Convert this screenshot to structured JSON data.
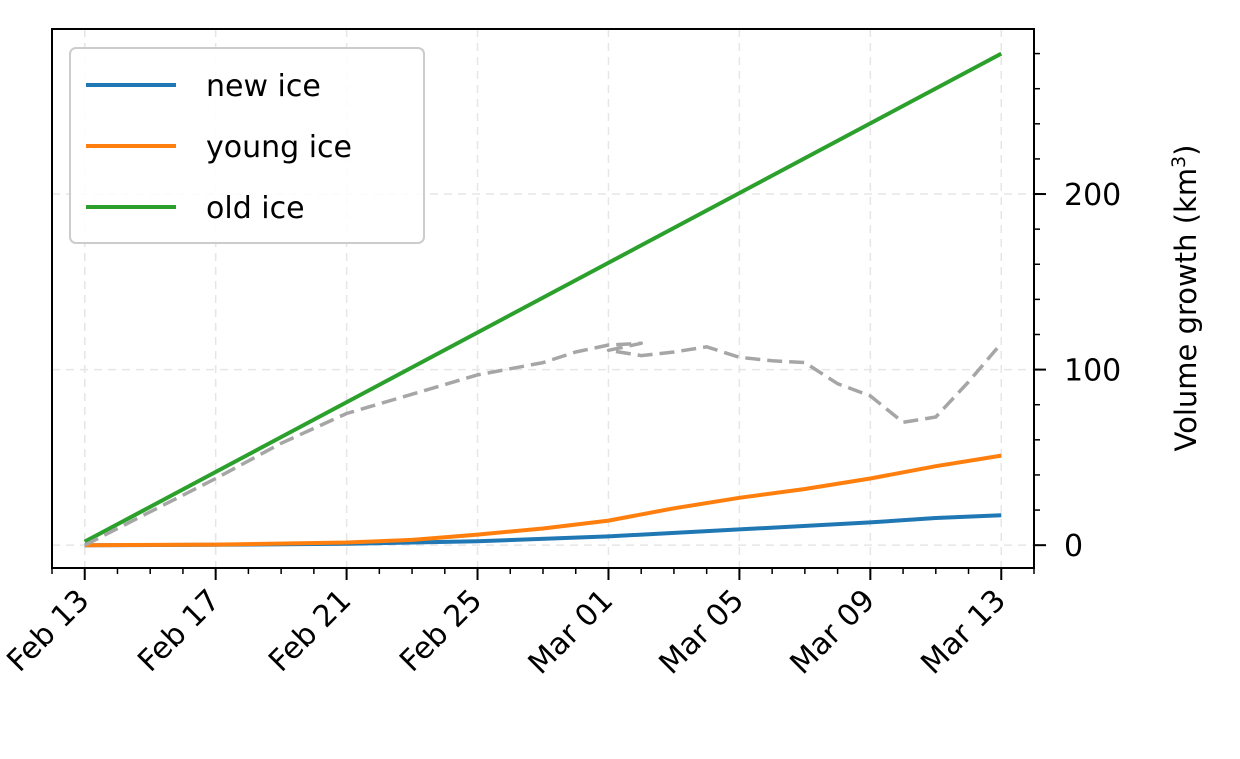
{
  "chart_data": {
    "type": "line",
    "title": "",
    "xlabel": "",
    "ylabel": "Volume growth (km",
    "ylabel_superscript": "3",
    "ylabel_suffix": ")",
    "y_axis_side": "right",
    "grid": true,
    "legend_position": "top-left",
    "xlim": [
      "2021-02-12",
      "2021-03-14"
    ],
    "ylim": [
      -13,
      294
    ],
    "x_ticks": [
      {
        "date": "2021-02-13",
        "label": "Feb 13"
      },
      {
        "date": "2021-02-17",
        "label": "Feb 17"
      },
      {
        "date": "2021-02-21",
        "label": "Feb 21"
      },
      {
        "date": "2021-02-25",
        "label": "Feb 25"
      },
      {
        "date": "2021-03-01",
        "label": "Mar 01"
      },
      {
        "date": "2021-03-05",
        "label": "Mar 05"
      },
      {
        "date": "2021-03-09",
        "label": "Mar 09"
      },
      {
        "date": "2021-03-13",
        "label": "Mar 13"
      }
    ],
    "y_ticks": [
      {
        "value": 0,
        "label": "0"
      },
      {
        "value": 100,
        "label": "100"
      },
      {
        "value": 200,
        "label": "200"
      }
    ],
    "series": [
      {
        "name": "new ice",
        "color": "#1f77b4",
        "style": "solid",
        "points": [
          [
            "2021-02-13",
            0
          ],
          [
            "2021-02-17",
            0.2
          ],
          [
            "2021-02-21",
            0.8
          ],
          [
            "2021-02-25",
            2.2
          ],
          [
            "2021-03-01",
            5
          ],
          [
            "2021-03-05",
            9
          ],
          [
            "2021-03-09",
            13
          ],
          [
            "2021-03-11",
            15.5
          ],
          [
            "2021-03-13",
            17
          ]
        ]
      },
      {
        "name": "young ice",
        "color": "#ff7f0e",
        "style": "solid",
        "points": [
          [
            "2021-02-13",
            0
          ],
          [
            "2021-02-17",
            0.3
          ],
          [
            "2021-02-21",
            1.5
          ],
          [
            "2021-02-23",
            3
          ],
          [
            "2021-02-25",
            6
          ],
          [
            "2021-02-27",
            9.5
          ],
          [
            "2021-03-01",
            14
          ],
          [
            "2021-03-03",
            21
          ],
          [
            "2021-03-05",
            27
          ],
          [
            "2021-03-07",
            32
          ],
          [
            "2021-03-09",
            38
          ],
          [
            "2021-03-11",
            45
          ],
          [
            "2021-03-13",
            51
          ]
        ]
      },
      {
        "name": "old ice",
        "color": "#2ca02c",
        "style": "solid",
        "points": [
          [
            "2021-02-13",
            2
          ],
          [
            "2021-03-13",
            280
          ]
        ]
      },
      {
        "color": "#a6a6a6",
        "style": "dashed",
        "points": [
          [
            "2021-02-13",
            0
          ],
          [
            "2021-02-15",
            19
          ],
          [
            "2021-02-17",
            38
          ],
          [
            "2021-02-19",
            58
          ],
          [
            "2021-02-21",
            75
          ],
          [
            "2021-02-23",
            86
          ],
          [
            "2021-02-25",
            97
          ],
          [
            "2021-02-27",
            104
          ],
          [
            "2021-02-28",
            110
          ],
          [
            "2021-02-29",
            114
          ],
          [
            "2021-02-30",
            115
          ],
          [
            "2021-03-01",
            111
          ],
          [
            "2021-03-02",
            108
          ],
          [
            "2021-03-03",
            110
          ],
          [
            "2021-03-04",
            113
          ],
          [
            "2021-03-05",
            107
          ],
          [
            "2021-03-06",
            105
          ],
          [
            "2021-03-07",
            104
          ],
          [
            "2021-03-08",
            92
          ],
          [
            "2021-03-09",
            85
          ],
          [
            "2021-03-10",
            70
          ],
          [
            "2021-03-11",
            73
          ],
          [
            "2021-03-12",
            93
          ],
          [
            "2021-03-13",
            115
          ]
        ]
      }
    ]
  }
}
